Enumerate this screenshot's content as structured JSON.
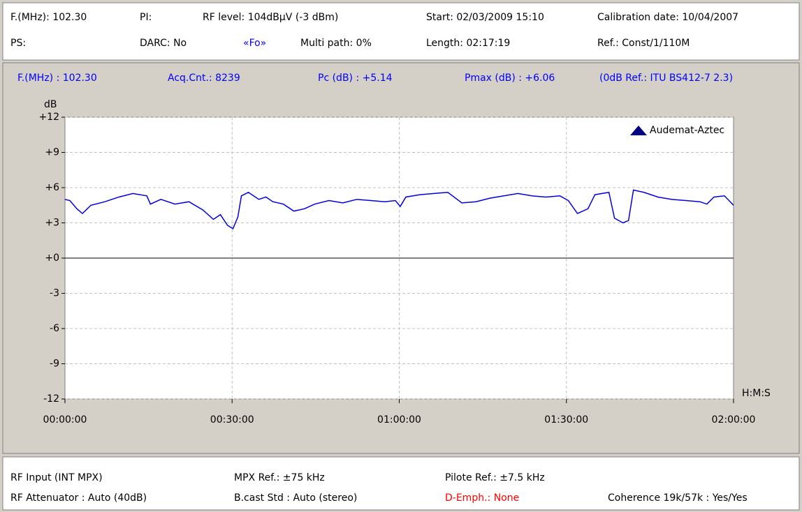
{
  "header": {
    "row1": [
      "F.(MHz): 102.30",
      "PI:",
      "RF level: 104dBµV (-3 dBm)",
      "Start: 02/03/2009 15:10",
      "Calibration date: 10/04/2007"
    ],
    "row2": [
      "PS:",
      "DARC: No",
      "«Fo»",
      "Multi path: 0%",
      "Length: 02:17:19",
      "Ref.: Const/1/110M"
    ]
  },
  "info": [
    "F.(MHz) : 102.30",
    "Acq.Cnt.: 8239",
    "Pc (dB) : +5.14",
    "Pmax (dB) : +6.06",
    "(0dB Ref.: ITU BS412-7 2.3)"
  ],
  "footer": {
    "row1": [
      "RF Input (INT MPX)",
      "MPX Ref.: ±75 kHz",
      "Pilote Ref.: ±7.5 kHz"
    ],
    "row2": [
      "RF Attenuator : Auto (40dB)",
      "B.cast Std : Auto (stereo)",
      "D-Emph.: None",
      "Coherence 19k/57k : Yes/Yes"
    ]
  },
  "chart_data": {
    "type": "line",
    "y_label": "dB",
    "x_label": "H:M:S",
    "logo": "Audemat-Aztec",
    "grid": true,
    "ylim": [
      -12,
      12
    ],
    "yticks": [
      {
        "value": -12,
        "label": "-12"
      },
      -9,
      -6,
      -3,
      {
        "value": 0,
        "label": "+0"
      },
      {
        "value": 3,
        "label": "+3"
      },
      {
        "value": 6,
        "label": "+6"
      },
      {
        "value": 9,
        "label": "+9"
      },
      {
        "value": 12,
        "label": "+12"
      }
    ],
    "xlim": [
      0,
      7200
    ],
    "xticks": [
      {
        "value": 0,
        "label": "00:00:00"
      },
      {
        "value": 1800,
        "label": "00:30:00"
      },
      {
        "value": 3600,
        "label": "01:00:00"
      },
      {
        "value": 5400,
        "label": "01:30:00"
      },
      {
        "value": 7200,
        "label": "02:00:00"
      }
    ],
    "series": [
      {
        "color": "#0000e0",
        "x": [
          0,
          53,
          128,
          188,
          279,
          430,
          581,
          731,
          882,
          920,
          1033,
          1184,
          1335,
          1485,
          1598,
          1674,
          1749,
          1809,
          1862,
          1900,
          1975,
          2088,
          2164,
          2239,
          2352,
          2465,
          2578,
          2691,
          2842,
          2993,
          3143,
          3294,
          3445,
          3558,
          3611,
          3671,
          3822,
          3973,
          4123,
          4274,
          4425,
          4576,
          4727,
          4878,
          5029,
          5179,
          5330,
          5421,
          5519,
          5632,
          5707,
          5858,
          5918,
          6009,
          6069,
          6122,
          6235,
          6386,
          6536,
          6687,
          6838,
          6913,
          6989,
          7102,
          7200
        ],
        "values": [
          5.0,
          4.9,
          4.2,
          3.8,
          4.5,
          4.8,
          5.2,
          5.5,
          5.3,
          4.6,
          5.0,
          4.6,
          4.8,
          4.1,
          3.3,
          3.7,
          2.8,
          2.5,
          3.5,
          5.3,
          5.6,
          5.0,
          5.2,
          4.8,
          4.6,
          4.0,
          4.2,
          4.6,
          4.9,
          4.7,
          5.0,
          4.9,
          4.8,
          4.9,
          4.4,
          5.2,
          5.4,
          5.5,
          5.6,
          4.7,
          4.8,
          5.1,
          5.3,
          5.5,
          5.3,
          5.2,
          5.3,
          4.9,
          3.8,
          4.2,
          5.4,
          5.6,
          3.4,
          3.0,
          3.2,
          5.8,
          5.6,
          5.2,
          5.0,
          4.9,
          4.8,
          4.6,
          5.2,
          5.3,
          4.5
        ]
      }
    ]
  }
}
